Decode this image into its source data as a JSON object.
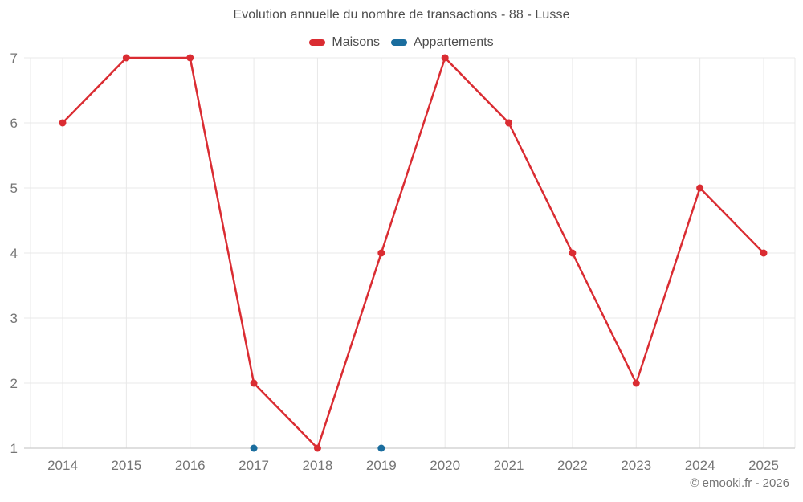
{
  "title": "Evolution annuelle du nombre de transactions - 88 - Lusse",
  "legend": {
    "items": [
      {
        "label": "Maisons",
        "color": "#da2c32"
      },
      {
        "label": "Appartements",
        "color": "#1a6d9e"
      }
    ]
  },
  "footer": {
    "copyright": "© emooki.fr - 2026"
  },
  "colors": {
    "grid": "#e8e8e8",
    "axis": "#cccccc",
    "tick_label": "#757575",
    "title_text": "#4d4d4d",
    "maisons": "#da2c32",
    "appartements": "#1a6d9e"
  },
  "chart_data": {
    "type": "line",
    "title": "Evolution annuelle du nombre de transactions - 88 - Lusse",
    "x": [
      "2014",
      "2015",
      "2016",
      "2017",
      "2018",
      "2019",
      "2020",
      "2021",
      "2022",
      "2023",
      "2024",
      "2025"
    ],
    "series": [
      {
        "name": "Maisons",
        "color": "#da2c32",
        "values": [
          6,
          7,
          7,
          2,
          1,
          4,
          7,
          6,
          4,
          2,
          5,
          4
        ]
      },
      {
        "name": "Appartements",
        "color": "#1a6d9e",
        "values": [
          null,
          null,
          null,
          1,
          null,
          1,
          null,
          null,
          null,
          null,
          null,
          null
        ]
      }
    ],
    "xlabel": "",
    "ylabel": "",
    "ylim": [
      1,
      7
    ],
    "yticks": [
      1,
      2,
      3,
      4,
      5,
      6,
      7
    ],
    "grid": true,
    "legend_position": "top"
  }
}
